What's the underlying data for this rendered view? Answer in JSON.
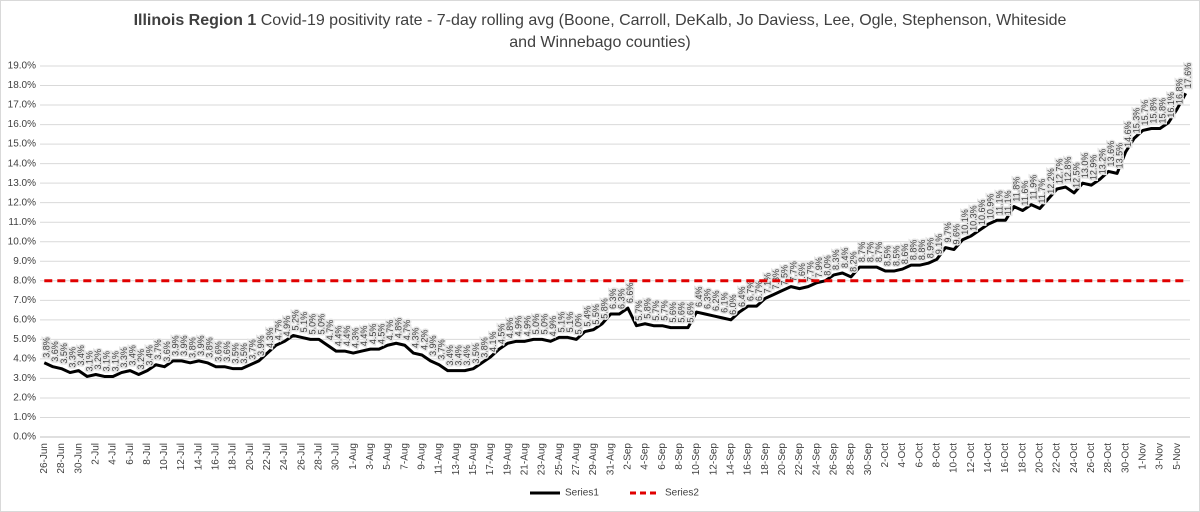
{
  "chart_data": {
    "type": "line",
    "title": [
      "Illinois Region 1",
      "Covid-19 positivity rate - 7-day rolling avg (Boone, Carroll, DeKalb, Jo Daviess, Lee, Ogle, Stephenson, Whiteside and Winnebago counties)"
    ],
    "categories": [
      "26-Jun",
      null,
      "28-Jun",
      null,
      "30-Jun",
      null,
      "2-Jul",
      null,
      "4-Jul",
      null,
      "6-Jul",
      null,
      "8-Jul",
      null,
      "10-Jul",
      null,
      "12-Jul",
      null,
      "14-Jul",
      null,
      "16-Jul",
      null,
      "18-Jul",
      null,
      "20-Jul",
      null,
      "22-Jul",
      null,
      "24-Jul",
      null,
      "26-Jul",
      null,
      "28-Jul",
      null,
      "30-Jul",
      null,
      "1-Aug",
      null,
      "3-Aug",
      null,
      "5-Aug",
      null,
      "7-Aug",
      null,
      "9-Aug",
      null,
      "11-Aug",
      null,
      "13-Aug",
      null,
      "15-Aug",
      null,
      "17-Aug",
      null,
      "19-Aug",
      null,
      "21-Aug",
      null,
      "23-Aug",
      null,
      "25-Aug",
      null,
      "27-Aug",
      null,
      "29-Aug",
      null,
      "31-Aug",
      null,
      "2-Sep",
      null,
      "4-Sep",
      null,
      "6-Sep",
      null,
      "8-Sep",
      null,
      "10-Sep",
      null,
      "12-Sep",
      null,
      "14-Sep",
      null,
      "16-Sep",
      null,
      "18-Sep",
      null,
      "20-Sep",
      null,
      "22-Sep",
      null,
      "24-Sep",
      null,
      "26-Sep",
      null,
      "28-Sep",
      null,
      "30-Sep",
      null,
      "2-Oct",
      null,
      "4-Oct",
      null,
      "6-Oct",
      null,
      "8-Oct",
      null,
      "10-Oct",
      null,
      "12-Oct",
      null,
      "14-Oct",
      null,
      "16-Oct",
      null,
      "18-Oct",
      null,
      "20-Oct",
      null,
      "22-Oct",
      null,
      "24-Oct",
      null,
      "26-Oct",
      null,
      "28-Oct",
      null,
      "30-Oct",
      null,
      "1-Nov",
      null,
      "3-Nov",
      null,
      "5-Nov",
      null
    ],
    "series": [
      {
        "name": "Series1",
        "color": "#000000",
        "dashed": false,
        "values": [
          3.8,
          3.6,
          3.5,
          3.3,
          3.4,
          3.1,
          3.2,
          3.1,
          3.1,
          3.3,
          3.4,
          3.2,
          3.4,
          3.7,
          3.6,
          3.9,
          3.9,
          3.8,
          3.9,
          3.8,
          3.6,
          3.6,
          3.5,
          3.5,
          3.7,
          3.9,
          4.3,
          4.7,
          4.9,
          5.2,
          5.1,
          5.0,
          5.0,
          4.7,
          4.4,
          4.4,
          4.3,
          4.4,
          4.5,
          4.5,
          4.7,
          4.8,
          4.7,
          4.3,
          4.2,
          3.9,
          3.7,
          3.4,
          3.4,
          3.4,
          3.5,
          3.8,
          4.1,
          4.5,
          4.8,
          4.9,
          4.9,
          5.0,
          5.0,
          4.9,
          5.1,
          5.1,
          5.0,
          5.4,
          5.5,
          5.8,
          6.3,
          6.3,
          6.6,
          5.7,
          5.8,
          5.7,
          5.7,
          5.6,
          5.6,
          5.6,
          6.4,
          6.3,
          6.2,
          6.1,
          6.0,
          6.4,
          6.7,
          6.7,
          7.1,
          7.3,
          7.5,
          7.7,
          7.6,
          7.7,
          7.9,
          8.0,
          8.3,
          8.4,
          8.2,
          8.7,
          8.7,
          8.7,
          8.5,
          8.5,
          8.6,
          8.8,
          8.8,
          8.9,
          9.1,
          9.7,
          9.6,
          10.1,
          10.3,
          10.6,
          10.9,
          11.1,
          11.1,
          11.8,
          11.6,
          11.9,
          11.7,
          12.2,
          12.7,
          12.8,
          12.5,
          13.0,
          12.9,
          13.2,
          13.6,
          13.5,
          14.6,
          15.3,
          15.7,
          15.8,
          15.8,
          16.1,
          16.8,
          17.6
        ],
        "value_labels": [
          "3.8%",
          "3.6%",
          "3.5%",
          "3.3%",
          "3.4%",
          "3.1%",
          "3.2%",
          "3.1%",
          "3.1%",
          "3.3%",
          "3.4%",
          "3.2%",
          "3.4%",
          "3.7%",
          "3.6%",
          "3.9%",
          "3.9%",
          "3.8%",
          "3.9%",
          "3.8%",
          "3.6%",
          "3.6%",
          "3.5%",
          "3.5%",
          "3.7%",
          "3.9%",
          "4.3%",
          "4.7%",
          "4.9%",
          "5.2%",
          "5.1%",
          "5.0%",
          "5.0%",
          "4.7%",
          "4.4%",
          "4.4%",
          "4.3%",
          "4.4%",
          "4.5%",
          "4.5%",
          "4.7%",
          "4.8%",
          "4.7%",
          "4.3%",
          "4.2%",
          "3.9%",
          "3.7%",
          "3.4%",
          "3.4%",
          "3.4%",
          "3.5%",
          "3.8%",
          "4.1%",
          "4.5%",
          "4.8%",
          "4.9%",
          "4.9%",
          "5.0%",
          "5.0%",
          "4.9%",
          "5.1%",
          "5.1%",
          "5.0%",
          "5.4%",
          "5.5%",
          "5.8%",
          "6.3%",
          "6.3%",
          "6.6%",
          "5.7%",
          "5.8%",
          "5.7%",
          "5.7%",
          "5.6%",
          "5.6%",
          "5.6%",
          "6.4%",
          "6.3%",
          "6.2%",
          "6.1%",
          "6.0%",
          "6.4%",
          "6.7%",
          "6.7%",
          "7.1%",
          "7.3%",
          "7.5%",
          "7.7%",
          "7.6%",
          "7.7%",
          "7.9%",
          "8.0%",
          "8.3%",
          "8.4%",
          "8.2%",
          "8.7%",
          "8.7%",
          "8.7%",
          "8.5%",
          "8.5%",
          "8.6%",
          "8.8%",
          "8.8%",
          "8.9%",
          "9.1%",
          "9.7%",
          "9.6%",
          "10.1%",
          "10.3%",
          "10.6%",
          "10.9%",
          "11.1%",
          "11.1%",
          "11.8%",
          "11.6%",
          "11.9%",
          "11.7%",
          "12.2%",
          "12.7%",
          "12.8%",
          "12.5%",
          "13.0%",
          "12.9%",
          "13.2%",
          "13.6%",
          "13.5%",
          "14.6%",
          "15.3%",
          "15.7%",
          "15.8%",
          "15.8%",
          "16.1%",
          "16.8%",
          "17.6%"
        ]
      },
      {
        "name": "Series2",
        "color": "#e00000",
        "dashed": true,
        "values": [
          8,
          8,
          8,
          8,
          8,
          8,
          8,
          8,
          8,
          8,
          8,
          8,
          8,
          8,
          8,
          8,
          8,
          8,
          8,
          8,
          8,
          8,
          8,
          8,
          8,
          8,
          8,
          8,
          8,
          8,
          8,
          8,
          8,
          8,
          8,
          8,
          8,
          8,
          8,
          8,
          8,
          8,
          8,
          8,
          8,
          8,
          8,
          8,
          8,
          8,
          8,
          8,
          8,
          8,
          8,
          8,
          8,
          8,
          8,
          8,
          8,
          8,
          8,
          8,
          8,
          8,
          8,
          8,
          8,
          8,
          8,
          8,
          8,
          8,
          8,
          8,
          8,
          8,
          8,
          8,
          8,
          8,
          8,
          8,
          8,
          8,
          8,
          8,
          8,
          8,
          8,
          8,
          8,
          8,
          8,
          8,
          8,
          8,
          8,
          8,
          8,
          8,
          8,
          8,
          8,
          8,
          8,
          8,
          8,
          8,
          8,
          8,
          8,
          8,
          8,
          8,
          8,
          8,
          8,
          8,
          8,
          8,
          8,
          8,
          8,
          8,
          8,
          8,
          8,
          8,
          8,
          8,
          8,
          8
        ]
      }
    ],
    "ylim": [
      0,
      19
    ],
    "yticks": [
      {
        "value": 0,
        "label": "0.0%"
      },
      {
        "value": 1,
        "label": "1.0%"
      },
      {
        "value": 2,
        "label": "2.0%"
      },
      {
        "value": 3,
        "label": "3.0%"
      },
      {
        "value": 4,
        "label": "4.0%"
      },
      {
        "value": 5,
        "label": "5.0%"
      },
      {
        "value": 6,
        "label": "6.0%"
      },
      {
        "value": 7,
        "label": "7.0%"
      },
      {
        "value": 8,
        "label": "8.0%"
      },
      {
        "value": 9,
        "label": "9.0%"
      },
      {
        "value": 10,
        "label": "10.0%"
      },
      {
        "value": 11,
        "label": "11.0%"
      },
      {
        "value": 12,
        "label": "12.0%"
      },
      {
        "value": 13,
        "label": "13.0%"
      },
      {
        "value": 14,
        "label": "14.0%"
      },
      {
        "value": 15,
        "label": "15.0%"
      },
      {
        "value": 16,
        "label": "16.0%"
      },
      {
        "value": 17,
        "label": "17.0%"
      },
      {
        "value": 18,
        "label": "18.0%"
      },
      {
        "value": 19,
        "label": "19.0%"
      }
    ],
    "grid": true,
    "legend": "bottom"
  }
}
